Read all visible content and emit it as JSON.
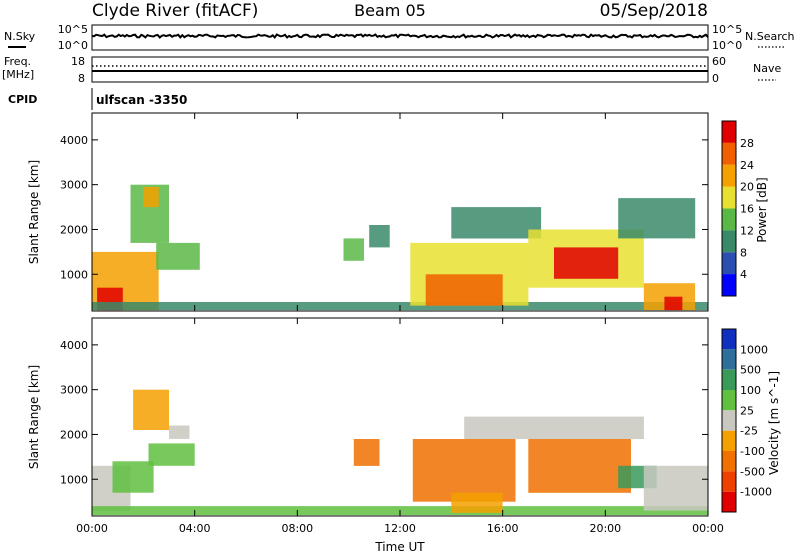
{
  "header": {
    "station": "Clyde River (fitACF)",
    "beam": "Beam 05",
    "date": "05/Sep/2018"
  },
  "status_panels": {
    "nsky_label": "N.Sky",
    "nsky_ticks": [
      "10^5",
      "10^0"
    ],
    "nsearch_label": "N.Search",
    "freq_label_line1": "Freq.",
    "freq_label_line2": "[MHz]",
    "freq_ticks": [
      "18",
      "8"
    ],
    "nave_label": "Nave",
    "nave_ticks": [
      "60",
      "0"
    ],
    "cpid_label": "CPID",
    "cpid_value": "ulfscan -3350"
  },
  "chart_data": [
    {
      "type": "heatmap",
      "name": "power",
      "ylabel": "Slant Range [km]",
      "yticks": [
        1000,
        2000,
        3000,
        4000
      ],
      "ylim": [
        180,
        4600
      ],
      "xlim_hours": [
        0,
        24
      ],
      "colorbar_label": "Power [dB]",
      "colorbar_ticks": [
        "4",
        "8",
        "12",
        "16",
        "20",
        "24",
        "28"
      ],
      "colorbar_colors": [
        "#0000ff",
        "#2a4fb0",
        "#3a8a6a",
        "#5ab846",
        "#e8e030",
        "#f5a000",
        "#f06000",
        "#e00000"
      ],
      "patches": [
        {
          "t0": 0.0,
          "t1": 2.6,
          "r0": 200,
          "r1": 1500,
          "v": 20
        },
        {
          "t0": 0.2,
          "t1": 1.2,
          "r0": 200,
          "r1": 700,
          "v": 28
        },
        {
          "t0": 1.5,
          "t1": 3.0,
          "r0": 1700,
          "r1": 3000,
          "v": 12
        },
        {
          "t0": 2.0,
          "t1": 2.6,
          "r0": 2500,
          "r1": 2950,
          "v": 22
        },
        {
          "t0": 2.5,
          "t1": 4.2,
          "r0": 1100,
          "r1": 1700,
          "v": 12
        },
        {
          "t0": 0.0,
          "t1": 24.0,
          "r0": 200,
          "r1": 380,
          "v": 8
        },
        {
          "t0": 9.8,
          "t1": 10.6,
          "r0": 1300,
          "r1": 1800,
          "v": 12
        },
        {
          "t0": 10.8,
          "t1": 11.6,
          "r0": 1600,
          "r1": 2100,
          "v": 8
        },
        {
          "t0": 12.4,
          "t1": 17.0,
          "r0": 300,
          "r1": 1700,
          "v": 16
        },
        {
          "t0": 13.0,
          "t1": 16.0,
          "r0": 300,
          "r1": 1000,
          "v": 24
        },
        {
          "t0": 14.0,
          "t1": 17.5,
          "r0": 1800,
          "r1": 2500,
          "v": 8
        },
        {
          "t0": 17.0,
          "t1": 21.5,
          "r0": 700,
          "r1": 2000,
          "v": 16
        },
        {
          "t0": 18.0,
          "t1": 20.5,
          "r0": 900,
          "r1": 1600,
          "v": 28
        },
        {
          "t0": 20.5,
          "t1": 23.5,
          "r0": 1800,
          "r1": 2700,
          "v": 8
        },
        {
          "t0": 21.5,
          "t1": 23.5,
          "r0": 200,
          "r1": 800,
          "v": 20
        },
        {
          "t0": 22.3,
          "t1": 23.0,
          "r0": 200,
          "r1": 500,
          "v": 28
        }
      ]
    },
    {
      "type": "heatmap",
      "name": "velocity",
      "ylabel": "Slant Range [km]",
      "yticks": [
        1000,
        2000,
        3000,
        4000
      ],
      "ylim": [
        180,
        4600
      ],
      "xlim_hours": [
        0,
        24
      ],
      "xlabel": "Time UT",
      "xticks": [
        "00:00",
        "04:00",
        "08:00",
        "12:00",
        "16:00",
        "20:00",
        "00:00"
      ],
      "colorbar_label": "Velocity [m s^-1]",
      "colorbar_ticks": [
        "1000",
        "500",
        "100",
        "25",
        "-25",
        "-100",
        "-500",
        "-1000"
      ],
      "colorbar_colors": [
        "#1030c0",
        "#2e6e9a",
        "#3a9a5a",
        "#60c040",
        "#c8c8c0",
        "#f5a000",
        "#f07000",
        "#f04000",
        "#e00000"
      ],
      "patches": [
        {
          "t0": 0.0,
          "t1": 1.5,
          "r0": 300,
          "r1": 1300,
          "v": 0
        },
        {
          "t0": 0.8,
          "t1": 2.4,
          "r0": 700,
          "r1": 1400,
          "v": 60
        },
        {
          "t0": 1.6,
          "t1": 3.0,
          "r0": 2100,
          "r1": 3000,
          "v": -100
        },
        {
          "t0": 2.2,
          "t1": 4.0,
          "r0": 1300,
          "r1": 1800,
          "v": 60
        },
        {
          "t0": 3.0,
          "t1": 3.8,
          "r0": 1900,
          "r1": 2200,
          "v": 0
        },
        {
          "t0": 0.0,
          "t1": 24.0,
          "r0": 200,
          "r1": 400,
          "v": 60
        },
        {
          "t0": 10.2,
          "t1": 11.2,
          "r0": 1300,
          "r1": 1900,
          "v": -200
        },
        {
          "t0": 12.5,
          "t1": 16.5,
          "r0": 500,
          "r1": 1900,
          "v": -400
        },
        {
          "t0": 14.0,
          "t1": 16.0,
          "r0": 250,
          "r1": 700,
          "v": -100
        },
        {
          "t0": 17.0,
          "t1": 21.0,
          "r0": 700,
          "r1": 1900,
          "v": -400
        },
        {
          "t0": 20.5,
          "t1": 22.0,
          "r0": 800,
          "r1": 1300,
          "v": 200
        },
        {
          "t0": 21.5,
          "t1": 24.0,
          "r0": 300,
          "r1": 1300,
          "v": 0
        },
        {
          "t0": 14.5,
          "t1": 21.5,
          "r0": 1900,
          "r1": 2400,
          "v": 0
        }
      ]
    }
  ]
}
